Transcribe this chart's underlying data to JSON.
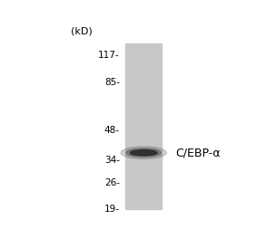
{
  "background_color": "#ffffff",
  "lane_color": "#c8c8c8",
  "band_color": "#2d2d2d",
  "label_text": "C/EBP-α",
  "label_fontsize": 9,
  "kd_label": "(kD)",
  "kd_label_fontsize": 8,
  "markers": [
    {
      "kd": 117,
      "label": "117-"
    },
    {
      "kd": 85,
      "label": "85-"
    },
    {
      "kd": 48,
      "label": "48-"
    },
    {
      "kd": 34,
      "label": "34-"
    },
    {
      "kd": 26,
      "label": "26-"
    },
    {
      "kd": 19,
      "label": "19-"
    }
  ],
  "band_kd": 37,
  "log_min": 19,
  "log_max": 135,
  "marker_fontsize": 7.5
}
